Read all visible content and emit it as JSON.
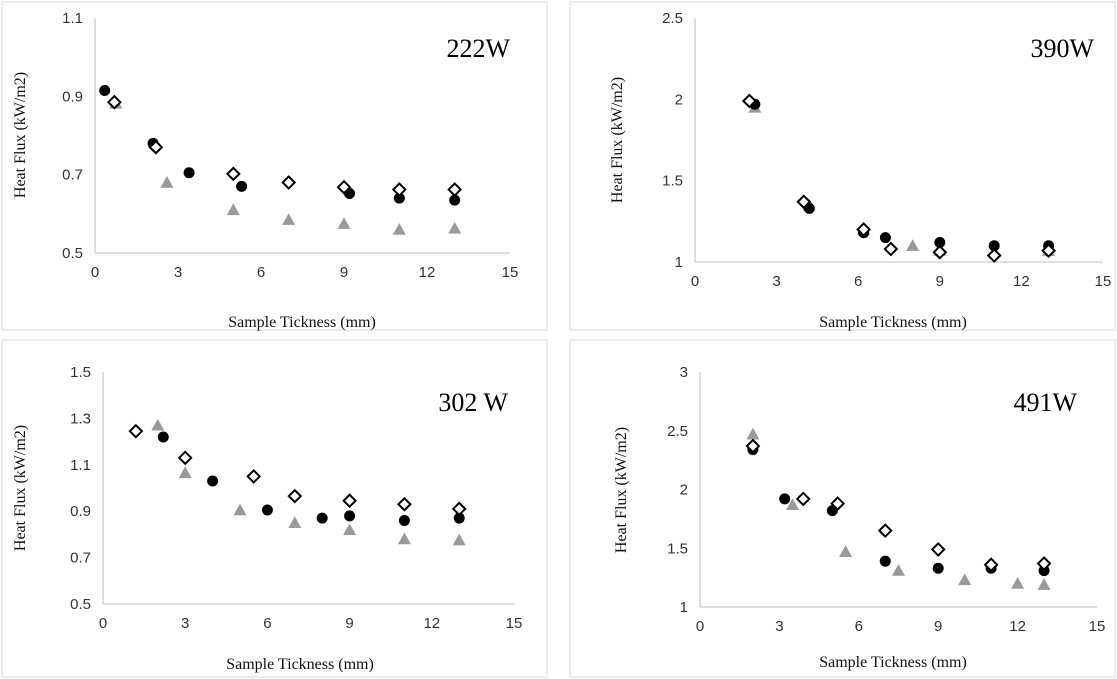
{
  "chart_data": [
    {
      "type": "scatter",
      "title": "222W",
      "xlabel": "Sample Tickness (mm)",
      "ylabel": "Heat Flux (kW/m2)",
      "xlim": [
        0,
        15
      ],
      "ylim": [
        0.5,
        1.1
      ],
      "xticks": [
        "0",
        "3",
        "6",
        "9",
        "12",
        "15"
      ],
      "yticks": [
        "0.5",
        "0.7",
        "0.9",
        "1.1"
      ],
      "series": [
        {
          "marker": "filled-circle",
          "color": "#000000",
          "points": [
            [
              0.35,
              0.915
            ],
            [
              2.1,
              0.78
            ],
            [
              3.4,
              0.705
            ],
            [
              5.3,
              0.67
            ],
            [
              9.2,
              0.652
            ],
            [
              11.0,
              0.64
            ],
            [
              13.0,
              0.635
            ]
          ]
        },
        {
          "marker": "open-diamond",
          "color": "#000000",
          "points": [
            [
              0.7,
              0.885
            ],
            [
              2.2,
              0.77
            ],
            [
              5.0,
              0.702
            ],
            [
              7.0,
              0.68
            ],
            [
              9.0,
              0.668
            ],
            [
              11.0,
              0.662
            ],
            [
              13.0,
              0.662
            ]
          ]
        },
        {
          "marker": "triangle",
          "color": "#9a9a9a",
          "points": [
            [
              0.75,
              0.882
            ],
            [
              2.6,
              0.68
            ],
            [
              5.0,
              0.61
            ],
            [
              7.0,
              0.585
            ],
            [
              9.0,
              0.575
            ],
            [
              11.0,
              0.56
            ],
            [
              13.0,
              0.563
            ]
          ]
        }
      ]
    },
    {
      "type": "scatter",
      "title": "390W",
      "xlabel": "Sample Tickness (mm)",
      "ylabel": "Heat Flux (kW/m2)",
      "xlim": [
        0,
        15
      ],
      "ylim": [
        1,
        2.5
      ],
      "xticks": [
        "0",
        "3",
        "6",
        "9",
        "12",
        "15"
      ],
      "yticks": [
        "1",
        "1.5",
        "2",
        "2.5"
      ],
      "series": [
        {
          "marker": "filled-circle",
          "color": "#000000",
          "points": [
            [
              2.2,
              1.97
            ],
            [
              4.2,
              1.33
            ],
            [
              6.2,
              1.18
            ],
            [
              7.0,
              1.15
            ],
            [
              9.0,
              1.12
            ],
            [
              11.0,
              1.1
            ],
            [
              13.0,
              1.1
            ]
          ]
        },
        {
          "marker": "open-diamond",
          "color": "#000000",
          "points": [
            [
              2.0,
              1.99
            ],
            [
              4.0,
              1.37
            ],
            [
              6.2,
              1.2
            ],
            [
              7.2,
              1.08
            ],
            [
              9.0,
              1.06
            ],
            [
              11.0,
              1.04
            ],
            [
              13.0,
              1.07
            ]
          ]
        },
        {
          "marker": "triangle",
          "color": "#9a9a9a",
          "points": [
            [
              2.2,
              1.95
            ],
            [
              4.2,
              1.35
            ],
            [
              6.2,
              1.2
            ],
            [
              8.0,
              1.1
            ],
            [
              9.0,
              1.07
            ],
            [
              11.0,
              1.06
            ],
            [
              13.0,
              1.07
            ]
          ]
        }
      ]
    },
    {
      "type": "scatter",
      "title": "302 W",
      "xlabel": "Sample Tickness (mm)",
      "ylabel": "Heat Flux (kW/m2)",
      "xlim": [
        0,
        15
      ],
      "ylim": [
        0.5,
        1.5
      ],
      "xticks": [
        "0",
        "3",
        "6",
        "9",
        "12",
        "15"
      ],
      "yticks": [
        "0.5",
        "0.7",
        "0.9",
        "1.1",
        "1.3",
        "1.5"
      ],
      "series": [
        {
          "marker": "filled-circle",
          "color": "#000000",
          "points": [
            [
              2.2,
              1.22
            ],
            [
              4.0,
              1.03
            ],
            [
              6.0,
              0.905
            ],
            [
              8.0,
              0.87
            ],
            [
              9.0,
              0.88
            ],
            [
              11.0,
              0.86
            ],
            [
              13.0,
              0.87
            ]
          ]
        },
        {
          "marker": "open-diamond",
          "color": "#000000",
          "points": [
            [
              1.2,
              1.245
            ],
            [
              3.0,
              1.13
            ],
            [
              5.5,
              1.05
            ],
            [
              7.0,
              0.965
            ],
            [
              9.0,
              0.945
            ],
            [
              11.0,
              0.93
            ],
            [
              13.0,
              0.91
            ]
          ]
        },
        {
          "marker": "triangle",
          "color": "#9a9a9a",
          "points": [
            [
              2.0,
              1.27
            ],
            [
              3.0,
              1.065
            ],
            [
              5.0,
              0.905
            ],
            [
              7.0,
              0.85
            ],
            [
              9.0,
              0.82
            ],
            [
              11.0,
              0.78
            ],
            [
              13.0,
              0.775
            ]
          ]
        }
      ]
    },
    {
      "type": "scatter",
      "title": "491W",
      "xlabel": "Sample Tickness (mm)",
      "ylabel": "Heat Flux (kW/m2)",
      "xlim": [
        0,
        15
      ],
      "ylim": [
        1,
        3
      ],
      "xticks": [
        "0",
        "3",
        "6",
        "9",
        "12",
        "15"
      ],
      "yticks": [
        "1",
        "1.5",
        "2",
        "2.5",
        "3"
      ],
      "series": [
        {
          "marker": "filled-circle",
          "color": "#000000",
          "points": [
            [
              2.0,
              2.34
            ],
            [
              3.2,
              1.92
            ],
            [
              5.0,
              1.82
            ],
            [
              7.0,
              1.39
            ],
            [
              9.0,
              1.33
            ],
            [
              11.0,
              1.33
            ],
            [
              13.0,
              1.31
            ]
          ]
        },
        {
          "marker": "open-diamond",
          "color": "#000000",
          "points": [
            [
              2.0,
              2.37
            ],
            [
              3.9,
              1.92
            ],
            [
              5.2,
              1.88
            ],
            [
              7.0,
              1.65
            ],
            [
              9.0,
              1.49
            ],
            [
              11.0,
              1.36
            ],
            [
              13.0,
              1.37
            ]
          ]
        },
        {
          "marker": "triangle",
          "color": "#9a9a9a",
          "points": [
            [
              2.0,
              2.47
            ],
            [
              3.5,
              1.87
            ],
            [
              5.5,
              1.47
            ],
            [
              7.5,
              1.31
            ],
            [
              10.0,
              1.23
            ],
            [
              12.0,
              1.2
            ],
            [
              13.0,
              1.19
            ]
          ]
        }
      ]
    }
  ]
}
